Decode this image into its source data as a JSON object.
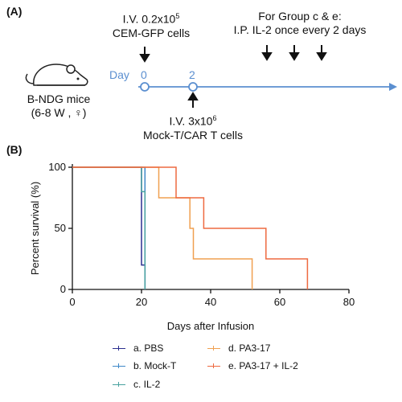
{
  "panelA": {
    "label": "(A)",
    "mice": {
      "line1": "B-NDG mice",
      "line2": "(6-8 W , ♀)"
    },
    "injection_top": {
      "line1": "I.V. 0.2x10",
      "line1_sup": "5",
      "line2": "CEM-GFP cells"
    },
    "group_note": {
      "line1": "For Group c & e:",
      "line2": "I.P. IL-2 once every 2 days"
    },
    "day_label": "Day",
    "day0": "0",
    "day2": "2",
    "injection_bottom": {
      "line1": "I.V. 3x10",
      "line1_sup": "6",
      "line2": "Mock-T/CAR T cells"
    },
    "colors": {
      "timeline": "#5b8fd0"
    }
  },
  "panelB": {
    "label": "(B)"
  },
  "chart_data": {
    "type": "line",
    "title": "",
    "xlabel": "Days after Infusion",
    "ylabel": "Percent survival (%)",
    "xlim": [
      0,
      80
    ],
    "ylim": [
      0,
      100
    ],
    "xticks": [
      0,
      20,
      40,
      60,
      80
    ],
    "yticks": [
      0,
      50,
      100
    ],
    "step": true,
    "series": [
      {
        "name": "a. PBS",
        "color": "#2b2f8f",
        "x": [
          0,
          20,
          20,
          21,
          21
        ],
        "y": [
          100,
          100,
          20,
          20,
          0
        ]
      },
      {
        "name": "b. Mock-T",
        "color": "#3f88c8",
        "x": [
          0,
          21,
          21
        ],
        "y": [
          100,
          100,
          0
        ]
      },
      {
        "name": "c. IL-2",
        "color": "#4aa3a0",
        "x": [
          0,
          20,
          20,
          21,
          21
        ],
        "y": [
          100,
          100,
          80,
          80,
          0
        ]
      },
      {
        "name": "d. PA3-17",
        "color": "#f0a050",
        "x": [
          0,
          21,
          21,
          25,
          25,
          34,
          34,
          35,
          35,
          52,
          52
        ],
        "y": [
          100,
          100,
          100,
          100,
          75,
          75,
          50,
          50,
          25,
          25,
          0
        ]
      },
      {
        "name": "e. PA3-17 + IL-2",
        "color": "#ee6a40",
        "x": [
          0,
          30,
          30,
          38,
          38,
          56,
          56,
          68,
          68
        ],
        "y": [
          100,
          100,
          75,
          75,
          50,
          50,
          25,
          25,
          0
        ]
      }
    ]
  }
}
